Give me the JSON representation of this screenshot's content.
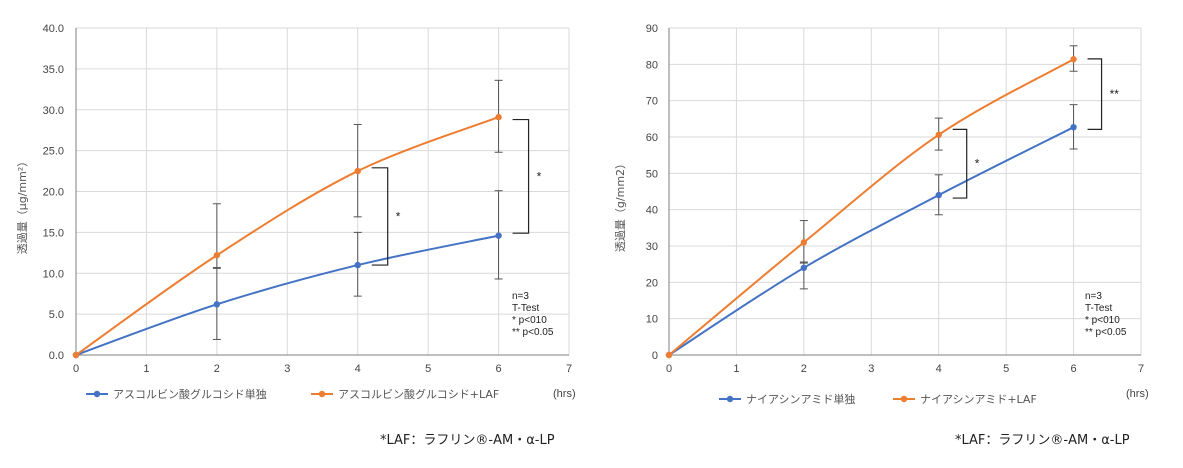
{
  "chart_data": [
    {
      "type": "line",
      "ylabel": "透過量（μg/mm²）",
      "xunit": "(hrs)",
      "ylim": [
        0,
        40
      ],
      "yticks": [
        0,
        5,
        10,
        15,
        20,
        25,
        30,
        35,
        40
      ],
      "ytick_labels": [
        "0.0",
        "5.0",
        "10.0",
        "15.0",
        "20.0",
        "25.0",
        "30.0",
        "35.0",
        "40.0"
      ],
      "xlim": [
        0,
        7
      ],
      "xticks": [
        0,
        1,
        2,
        3,
        4,
        5,
        6,
        7
      ],
      "grid": true,
      "series": [
        {
          "name": "アスコルビン酸グルコシド単独",
          "color": "#4472c4",
          "x": [
            0,
            2,
            4,
            6
          ],
          "y": [
            0,
            6.2,
            11.0,
            14.6
          ],
          "err_lo": [
            0,
            1.9,
            7.2,
            9.3
          ],
          "err_hi": [
            0,
            10.6,
            15.0,
            20.1
          ]
        },
        {
          "name": "アスコルビン酸グルコシド+LAF",
          "color": "#ed7d31",
          "x": [
            0,
            2,
            4,
            6
          ],
          "y": [
            0,
            12.2,
            22.5,
            29.1
          ],
          "err_lo": [
            0,
            10.7,
            16.9,
            24.8
          ],
          "err_hi": [
            0,
            18.5,
            28.2,
            33.6
          ]
        }
      ],
      "brackets": [
        {
          "x": 4,
          "y1": 11.0,
          "y2": 22.9,
          "label": "*"
        },
        {
          "x": 6,
          "y1": 14.9,
          "y2": 28.8,
          "label": "*"
        }
      ],
      "stats": [
        "n=3",
        "T-Test",
        "* p<010",
        "** p<0.05"
      ],
      "footnote": "*LAF：ラフリン®-AM・α-LP"
    },
    {
      "type": "line",
      "ylabel": "透過量（g/mm2）",
      "xunit": "(hrs)",
      "ylim": [
        0,
        90
      ],
      "yticks": [
        0,
        10,
        20,
        30,
        40,
        50,
        60,
        70,
        80,
        90
      ],
      "ytick_labels": [
        "0",
        "10",
        "20",
        "30",
        "40",
        "50",
        "60",
        "70",
        "80",
        "90"
      ],
      "xlim": [
        0,
        7
      ],
      "xticks": [
        0,
        1,
        2,
        3,
        4,
        5,
        6,
        7
      ],
      "grid": true,
      "series": [
        {
          "name": "ナイアシンアミド単独",
          "color": "#4472c4",
          "x": [
            0,
            2,
            4,
            6
          ],
          "y": [
            0,
            24.0,
            44.0,
            62.7
          ],
          "err_lo": [
            0,
            18.2,
            38.6,
            56.7
          ],
          "err_hi": [
            0,
            25.6,
            49.6,
            68.9
          ]
        },
        {
          "name": "ナイアシンアミド+LAF",
          "color": "#ed7d31",
          "x": [
            0,
            2,
            4,
            6
          ],
          "y": [
            0,
            31.0,
            60.6,
            81.4
          ],
          "err_lo": [
            0,
            25.3,
            56.4,
            78.1
          ],
          "err_hi": [
            0,
            37.0,
            65.2,
            85.1
          ]
        }
      ],
      "brackets": [
        {
          "x": 4,
          "y1": 43.2,
          "y2": 62.1,
          "label": "*"
        },
        {
          "x": 6,
          "y1": 62.1,
          "y2": 81.5,
          "label": "**"
        }
      ],
      "stats": [
        "n=3",
        "T-Test",
        "* p<010",
        "** p<0.05"
      ],
      "footnote": "*LAF：ラフリン®-AM・α-LP"
    }
  ]
}
